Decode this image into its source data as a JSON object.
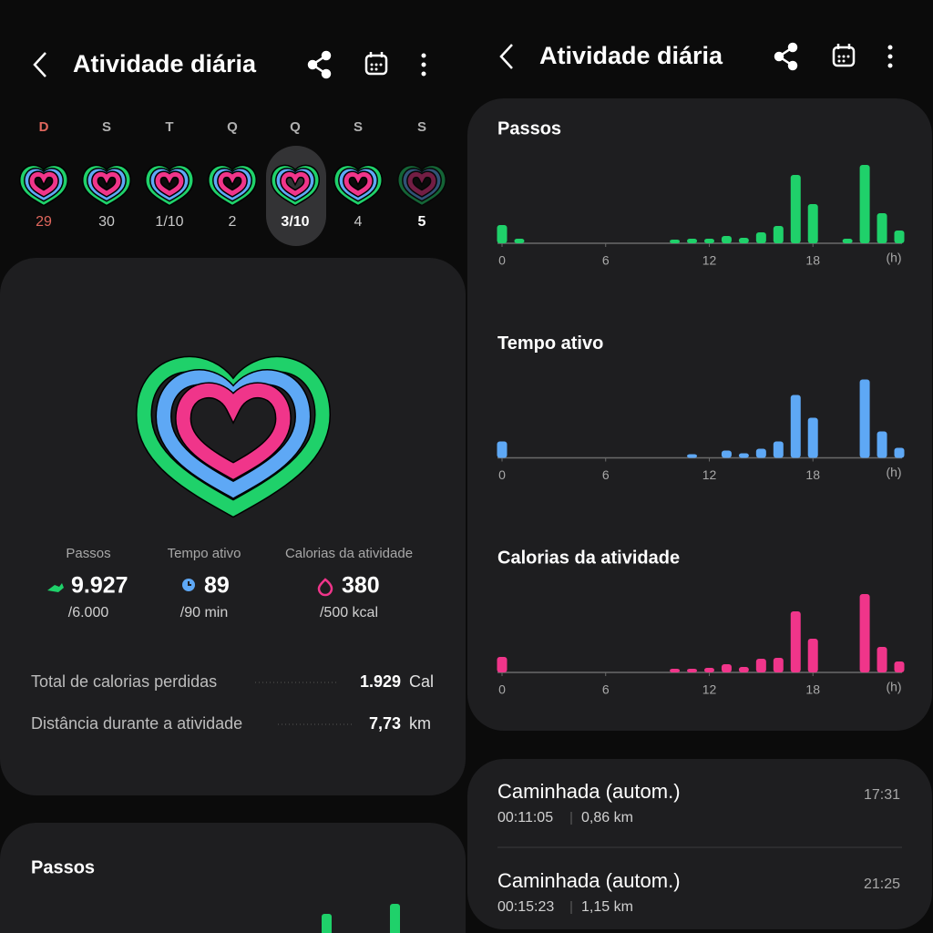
{
  "header": {
    "title": "Atividade diária"
  },
  "week": {
    "days": [
      {
        "letter": "D",
        "date": "29"
      },
      {
        "letter": "S",
        "date": "30"
      },
      {
        "letter": "T",
        "date": "1/10"
      },
      {
        "letter": "Q",
        "date": "2"
      },
      {
        "letter": "Q",
        "date": "3/10"
      },
      {
        "letter": "S",
        "date": "4"
      },
      {
        "letter": "S",
        "date": "5"
      }
    ]
  },
  "summary": {
    "stats": [
      {
        "label": "Passos",
        "value": "9.927",
        "goal": "/6.000"
      },
      {
        "label": "Tempo ativo",
        "value": "89",
        "goal": "/90 min"
      },
      {
        "label": "Calorias da atividade",
        "value": "380",
        "goal": "/500 kcal"
      }
    ],
    "totals": [
      {
        "label": "Total de calorias perdidas",
        "value": "1.929",
        "unit": "Cal"
      },
      {
        "label": "Distância durante a atividade",
        "value": "7,73",
        "unit": "km"
      }
    ]
  },
  "steps_card": {
    "title": "Passos"
  },
  "charts": [
    {
      "type": "bar",
      "title": "Passos",
      "color": "#1fd16a",
      "xlim": [
        0,
        23
      ],
      "ylim": [
        0,
        100
      ],
      "xticks": [
        0,
        6,
        12,
        18
      ],
      "unit": "(h)",
      "values": [
        20,
        5,
        0,
        0,
        0,
        0,
        0,
        0,
        0,
        0,
        4,
        5,
        5,
        8,
        6,
        12,
        19,
        75,
        43,
        0,
        5,
        86,
        33,
        14
      ]
    },
    {
      "type": "bar",
      "title": "Tempo ativo",
      "color": "#5ea8f5",
      "xlim": [
        0,
        23
      ],
      "ylim": [
        0,
        100
      ],
      "xticks": [
        0,
        6,
        12,
        18
      ],
      "unit": "(h)",
      "values": [
        18,
        0,
        0,
        0,
        0,
        0,
        0,
        0,
        0,
        0,
        0,
        4,
        0,
        8,
        5,
        10,
        18,
        69,
        44,
        0,
        0,
        86,
        29,
        11
      ]
    },
    {
      "type": "bar",
      "title": "Calorias da atividade",
      "color": "#f0358a",
      "xlim": [
        0,
        23
      ],
      "ylim": [
        0,
        100
      ],
      "xticks": [
        0,
        6,
        12,
        18
      ],
      "unit": "(h)",
      "values": [
        17,
        0,
        0,
        0,
        0,
        0,
        0,
        0,
        0,
        0,
        4,
        4,
        5,
        9,
        6,
        15,
        16,
        67,
        37,
        0,
        0,
        86,
        28,
        12
      ]
    }
  ],
  "activities": [
    {
      "name": "Caminhada (autom.)",
      "duration": "00:11:05",
      "distance": "0,86 km",
      "time": "17:31"
    },
    {
      "name": "Caminhada (autom.)",
      "duration": "00:15:23",
      "distance": "1,15 km",
      "time": "21:25"
    }
  ]
}
